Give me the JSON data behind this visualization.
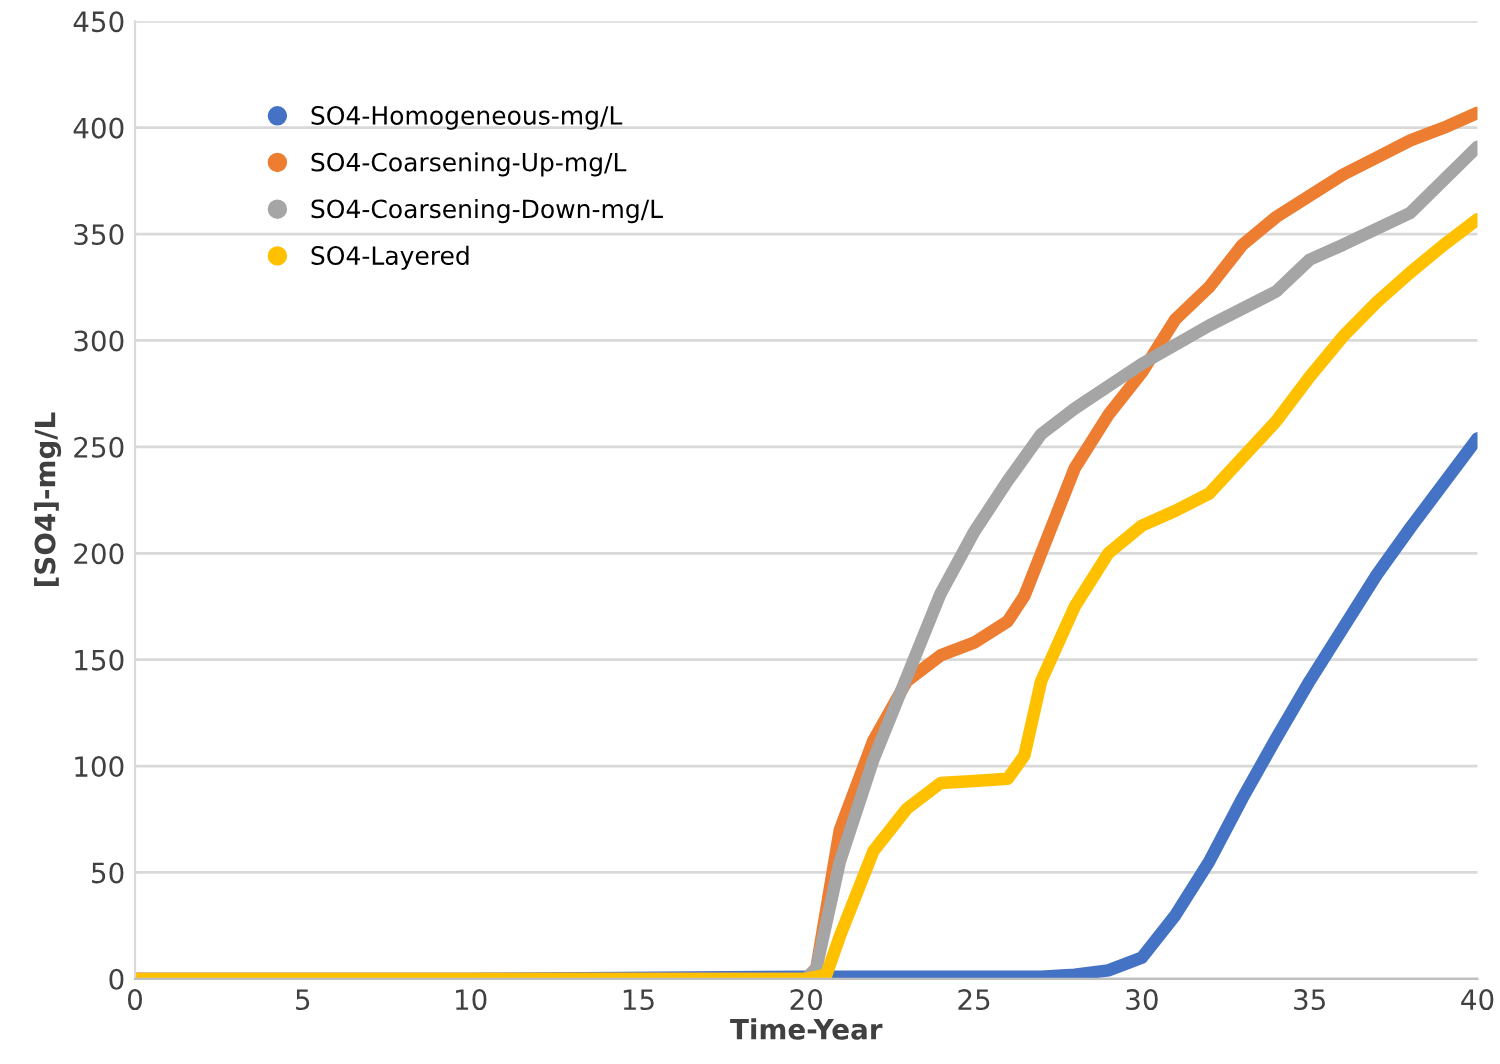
{
  "chart_data": {
    "type": "line",
    "xlabel": "Time-Year",
    "ylabel": "[SO4]-mg/L",
    "xlim": [
      0,
      40
    ],
    "ylim": [
      0,
      450
    ],
    "xticks": [
      0,
      5,
      10,
      15,
      20,
      25,
      30,
      35,
      40
    ],
    "yticks": [
      0,
      50,
      100,
      150,
      200,
      250,
      300,
      350,
      400,
      450
    ],
    "grid": "y",
    "legend": "top left",
    "marker": "none",
    "line_style": "solid",
    "series": [
      {
        "name": "SO4-Homogeneous-mg/L",
        "color": "#4472c4",
        "x": [
          0,
          10,
          20,
          22,
          25,
          27,
          28,
          29,
          30,
          31,
          32,
          33,
          34,
          35,
          36,
          37,
          38,
          39,
          40
        ],
        "values": [
          0,
          0,
          1,
          1,
          1,
          1,
          2,
          4,
          10,
          30,
          55,
          85,
          113,
          140,
          165,
          190,
          212,
          233,
          254
        ]
      },
      {
        "name": "SO4-Coarsening-Up-mg/L",
        "color": "#ed7d31",
        "x": [
          0,
          10,
          20,
          20.3,
          21,
          22,
          23,
          24,
          25,
          26,
          26.5,
          27,
          28,
          29,
          30,
          31,
          32,
          33,
          34,
          35,
          36,
          37,
          38,
          39,
          40
        ],
        "values": [
          0,
          0,
          0,
          5,
          70,
          112,
          140,
          152,
          158,
          168,
          180,
          200,
          240,
          265,
          285,
          310,
          325,
          345,
          358,
          368,
          378,
          386,
          394,
          400,
          407
        ]
      },
      {
        "name": "SO4-Coarsening-Down-mg/L",
        "color": "#a5a5a5",
        "x": [
          0,
          10,
          20,
          20.3,
          21,
          22,
          23,
          24,
          25,
          26,
          27,
          28,
          30,
          32,
          34,
          35,
          36,
          38,
          40
        ],
        "values": [
          0,
          0,
          0,
          5,
          55,
          103,
          142,
          181,
          210,
          234,
          256,
          268,
          289,
          307,
          323,
          338,
          345,
          360,
          391
        ]
      },
      {
        "name": "SO4-Layered",
        "color": "#ffc000",
        "x": [
          0,
          10,
          20,
          20.6,
          21,
          22,
          23,
          24,
          25,
          26,
          26.5,
          27,
          28,
          29,
          30,
          31,
          32,
          33,
          34,
          35,
          36,
          37,
          38,
          39,
          40
        ],
        "values": [
          0,
          0,
          0,
          2,
          20,
          60,
          80,
          92,
          93,
          94,
          105,
          140,
          175,
          200,
          213,
          220,
          228,
          245,
          262,
          283,
          302,
          318,
          332,
          345,
          357
        ]
      }
    ]
  }
}
